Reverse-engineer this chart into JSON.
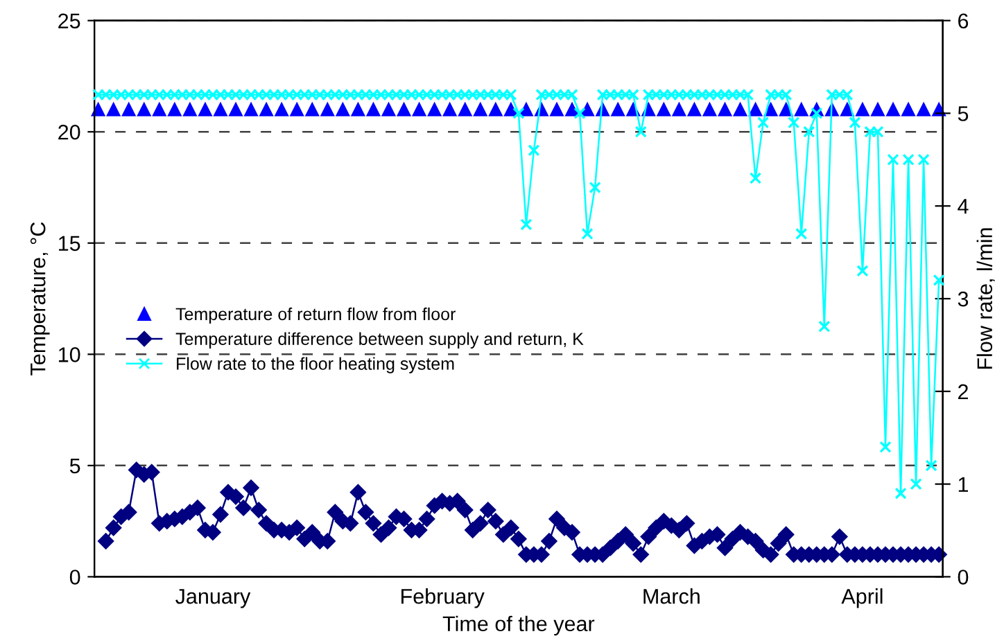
{
  "chart_data": {
    "type": "line",
    "xlabel": "Time of the year",
    "ylabel": "Temperature, °C",
    "y2label": "Flow rate, l/min",
    "categories": [
      null,
      null,
      null,
      null,
      null,
      null,
      null,
      null,
      null,
      null,
      null,
      null,
      null,
      null,
      null,
      "January",
      null,
      null,
      null,
      null,
      null,
      null,
      null,
      null,
      null,
      null,
      null,
      null,
      null,
      null,
      null,
      null,
      null,
      null,
      null,
      null,
      null,
      null,
      null,
      null,
      null,
      null,
      null,
      null,
      null,
      "February",
      null,
      null,
      null,
      null,
      null,
      null,
      null,
      null,
      null,
      null,
      null,
      null,
      null,
      null,
      null,
      null,
      null,
      null,
      null,
      null,
      null,
      null,
      null,
      null,
      null,
      null,
      null,
      null,
      null,
      "March",
      null,
      null,
      null,
      null,
      null,
      null,
      null,
      null,
      null,
      null,
      null,
      null,
      null,
      null,
      null,
      null,
      null,
      null,
      null,
      null,
      null,
      null,
      null,
      null,
      "April",
      null,
      null,
      null,
      null,
      null,
      null,
      null,
      null,
      null,
      null
    ],
    "ylim": [
      0,
      25
    ],
    "yticks": [
      0,
      5,
      10,
      15,
      20,
      25
    ],
    "y2lim": [
      0,
      6
    ],
    "y2ticks": [
      0,
      1,
      2,
      3,
      4,
      5,
      6
    ],
    "grid": "y",
    "legend": "center left",
    "series": [
      {
        "name": "Temperature of return flow from floor",
        "type": "scatter",
        "marker": "triangle",
        "color": "#0000ff",
        "values": [
          21,
          null,
          21,
          null,
          21,
          null,
          21,
          null,
          21,
          null,
          21,
          null,
          21,
          null,
          21,
          null,
          21,
          null,
          21,
          null,
          21,
          null,
          21,
          null,
          21,
          null,
          21,
          null,
          21,
          null,
          21,
          null,
          21,
          null,
          21,
          null,
          21,
          null,
          21,
          null,
          21,
          null,
          21,
          null,
          21,
          null,
          21,
          null,
          21,
          null,
          21,
          null,
          21,
          null,
          21,
          null,
          21,
          null,
          21,
          null,
          21,
          null,
          21,
          null,
          21,
          null,
          21,
          null,
          21,
          null,
          21,
          null,
          21,
          null,
          21,
          null,
          21,
          null,
          21,
          null,
          21,
          null,
          21,
          null,
          21,
          null,
          21,
          null,
          21,
          null,
          21,
          null,
          21,
          null,
          21,
          null,
          21,
          null,
          21,
          null,
          21,
          null,
          21,
          null,
          21,
          null,
          21,
          null,
          21,
          null,
          21
        ]
      },
      {
        "name": "Temperature difference between supply and return, K",
        "marker": "diamond",
        "color": "#000080",
        "values": [
          null,
          1.6,
          2.2,
          2.7,
          2.9,
          4.8,
          4.6,
          4.7,
          2.4,
          2.5,
          2.6,
          2.7,
          2.9,
          3.1,
          2.1,
          2.0,
          2.8,
          3.8,
          3.6,
          3.1,
          4.0,
          3.0,
          2.4,
          2.1,
          2.1,
          2.0,
          2.2,
          1.7,
          2.0,
          1.6,
          1.6,
          2.9,
          2.5,
          2.4,
          3.8,
          2.9,
          2.4,
          1.9,
          2.2,
          2.7,
          2.6,
          2.1,
          2.1,
          2.6,
          3.2,
          3.4,
          3.3,
          3.4,
          3.0,
          2.1,
          2.4,
          3.0,
          2.5,
          1.9,
          2.2,
          1.7,
          1.0,
          1.0,
          1.0,
          1.6,
          2.6,
          2.2,
          2.0,
          1.0,
          1.0,
          1.0,
          1.0,
          1.3,
          1.6,
          1.9,
          1.5,
          1.0,
          1.8,
          2.2,
          2.5,
          2.3,
          2.1,
          2.4,
          1.4,
          1.6,
          1.8,
          1.9,
          1.3,
          1.7,
          2.0,
          1.8,
          1.6,
          1.2,
          1.0,
          1.5,
          1.9,
          1.0,
          1.0,
          1.0,
          1.0,
          1.0,
          1.0,
          1.8,
          1.0,
          1.0,
          1.0,
          1.0,
          1.0,
          1.0,
          1.0,
          1.0,
          1.0,
          1.0,
          1.0,
          1.0,
          1.0
        ]
      },
      {
        "name": "Flow rate to the floor heating system",
        "marker": "cross",
        "color": "#00ffff",
        "axis": "y2",
        "values": [
          5.2,
          5.2,
          5.2,
          5.2,
          5.2,
          5.2,
          5.2,
          5.2,
          5.2,
          5.2,
          5.2,
          5.2,
          5.2,
          5.2,
          5.2,
          5.2,
          5.2,
          5.2,
          5.2,
          5.2,
          5.2,
          5.2,
          5.2,
          5.2,
          5.2,
          5.2,
          5.2,
          5.2,
          5.2,
          5.2,
          5.2,
          5.2,
          5.2,
          5.2,
          5.2,
          5.2,
          5.2,
          5.2,
          5.2,
          5.2,
          5.2,
          5.2,
          5.2,
          5.2,
          5.2,
          5.2,
          5.2,
          5.2,
          5.2,
          5.2,
          5.2,
          5.2,
          5.2,
          5.2,
          5.2,
          5.0,
          3.8,
          4.6,
          5.2,
          5.2,
          5.2,
          5.2,
          5.2,
          5.0,
          3.7,
          4.2,
          5.2,
          5.2,
          5.2,
          5.2,
          5.2,
          4.8,
          5.2,
          5.2,
          5.2,
          5.2,
          5.2,
          5.2,
          5.2,
          5.2,
          5.2,
          5.2,
          5.2,
          5.2,
          5.2,
          5.2,
          4.3,
          4.9,
          5.2,
          5.2,
          5.2,
          4.9,
          3.7,
          4.8,
          5.0,
          2.7,
          5.2,
          5.2,
          5.2,
          4.9,
          3.3,
          4.8,
          4.8,
          1.4,
          4.5,
          0.9,
          4.5,
          1.0,
          4.5,
          1.2,
          3.2
        ]
      }
    ]
  }
}
